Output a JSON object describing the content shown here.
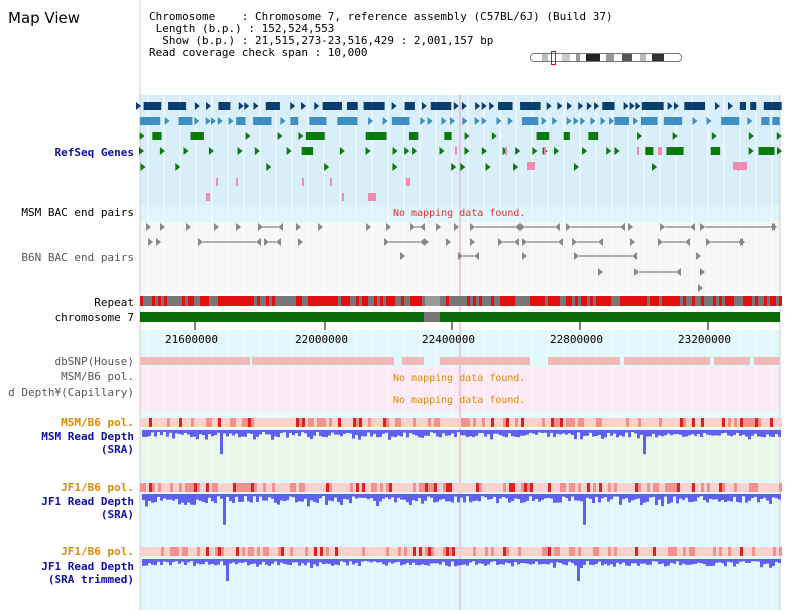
{
  "title": "Map View",
  "info": {
    "line1": "Chromosome    : Chromosome 7, reference assembly (C57BL/6J) (Build 37)",
    "line2": " Length (b.p.) : 152,524,553",
    "line3": "  Show (b.p.) : 21,515,273-23,516,429 : 2,001,157 bp",
    "line4": "Read coverage check span : 10,000"
  },
  "tracks": {
    "refseq": "RefSeq Genes",
    "msm_bac": "MSM BAC end pairs",
    "b6n_bac": "B6N BAC end pairs",
    "repeat": "Repeat",
    "chromosome": "chromosome 7",
    "dbsnp": "dbSNP(House)",
    "msm_b6_pol_cap": "MSM/B6 pol.",
    "read_depth_cap": "d Depth¥(Capillary)",
    "msm_b6_pol": "MSM/B6 pol.",
    "msm_read_depth_1": "MSM Read Depth",
    "msm_read_depth_2": "(SRA)",
    "jf1_b6_pol": "JF1/B6 pol.",
    "jf1_read_depth_1": "JF1 Read Depth",
    "jf1_read_depth_2": "(SRA)",
    "jf1_b6_pol_2": "JF1/B6 pol.",
    "jf1_trim_1": "JF1 Read Depth",
    "jf1_trim_2": "(SRA trimmed)"
  },
  "messages": {
    "no_data_1": "No mapping data found.",
    "no_data_2": "No mapping data found.",
    "no_data_3": "No mapping data found."
  },
  "scale": {
    "ticks": [
      "21600000",
      "22000000",
      "22400000",
      "22800000",
      "23200000"
    ]
  },
  "colors": {
    "gene_dark": "#0b3d6e",
    "gene_light": "#3c8fc0",
    "gene_green": "#0a7a0a",
    "pink": "#f08ab0",
    "repeat_red": "#e01010",
    "chrom_green": "#0a6a0a",
    "depth_blue": "#6060f0",
    "label_blue": "#1010a0",
    "label_orange": "#e08a00"
  }
}
